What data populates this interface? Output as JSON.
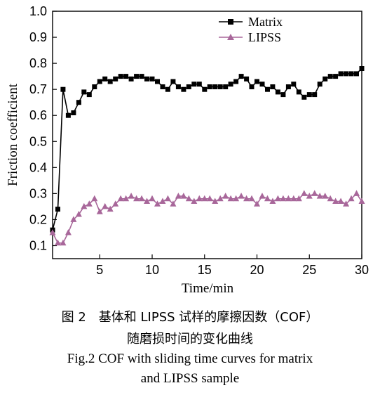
{
  "chart_data": {
    "type": "line",
    "title": "",
    "xlabel": "Time/min",
    "ylabel": "Friction coefficient",
    "xlim": [
      0.5,
      30
    ],
    "ylim": [
      0.05,
      1.0
    ],
    "x_ticks": [
      5,
      10,
      15,
      20,
      25,
      30
    ],
    "y_ticks": [
      0.1,
      0.2,
      0.3,
      0.4,
      0.5,
      0.6,
      0.7,
      0.8,
      0.9,
      1.0
    ],
    "grid": false,
    "legend_position": "top-center",
    "series": [
      {
        "name": "Matrix",
        "color": "#000000",
        "marker": "square",
        "x": [
          0.5,
          1.0,
          1.5,
          2.0,
          2.5,
          3.0,
          3.5,
          4.0,
          4.5,
          5.0,
          5.5,
          6.0,
          6.5,
          7.0,
          7.5,
          8.0,
          8.5,
          9.0,
          9.5,
          10.0,
          10.5,
          11.0,
          11.5,
          12.0,
          12.5,
          13.0,
          13.5,
          14.0,
          14.5,
          15.0,
          15.5,
          16.0,
          16.5,
          17.0,
          17.5,
          18.0,
          18.5,
          19.0,
          19.5,
          20.0,
          20.5,
          21.0,
          21.5,
          22.0,
          22.5,
          23.0,
          23.5,
          24.0,
          24.5,
          25.0,
          25.5,
          26.0,
          26.5,
          27.0,
          27.5,
          28.0,
          28.5,
          29.0,
          29.5,
          30.0
        ],
        "y": [
          0.16,
          0.24,
          0.7,
          0.6,
          0.61,
          0.65,
          0.69,
          0.68,
          0.71,
          0.73,
          0.74,
          0.73,
          0.74,
          0.75,
          0.75,
          0.74,
          0.75,
          0.75,
          0.74,
          0.74,
          0.73,
          0.71,
          0.7,
          0.73,
          0.71,
          0.7,
          0.71,
          0.72,
          0.72,
          0.7,
          0.71,
          0.71,
          0.71,
          0.71,
          0.72,
          0.73,
          0.75,
          0.74,
          0.71,
          0.73,
          0.72,
          0.7,
          0.71,
          0.69,
          0.68,
          0.71,
          0.72,
          0.69,
          0.67,
          0.68,
          0.68,
          0.72,
          0.74,
          0.75,
          0.75,
          0.76,
          0.76,
          0.76,
          0.76,
          0.78
        ]
      },
      {
        "name": "LIPSS",
        "color": "#a8679a",
        "marker": "triangle",
        "x": [
          0.5,
          1.0,
          1.5,
          2.0,
          2.5,
          3.0,
          3.5,
          4.0,
          4.5,
          5.0,
          5.5,
          6.0,
          6.5,
          7.0,
          7.5,
          8.0,
          8.5,
          9.0,
          9.5,
          10.0,
          10.5,
          11.0,
          11.5,
          12.0,
          12.5,
          13.0,
          13.5,
          14.0,
          14.5,
          15.0,
          15.5,
          16.0,
          16.5,
          17.0,
          17.5,
          18.0,
          18.5,
          19.0,
          19.5,
          20.0,
          20.5,
          21.0,
          21.5,
          22.0,
          22.5,
          23.0,
          23.5,
          24.0,
          24.5,
          25.0,
          25.5,
          26.0,
          26.5,
          27.0,
          27.5,
          28.0,
          28.5,
          29.0,
          29.5,
          30.0
        ],
        "y": [
          0.15,
          0.11,
          0.11,
          0.15,
          0.2,
          0.22,
          0.25,
          0.26,
          0.28,
          0.23,
          0.25,
          0.24,
          0.26,
          0.28,
          0.28,
          0.29,
          0.28,
          0.28,
          0.27,
          0.28,
          0.26,
          0.27,
          0.28,
          0.26,
          0.29,
          0.29,
          0.28,
          0.27,
          0.28,
          0.28,
          0.28,
          0.27,
          0.28,
          0.29,
          0.28,
          0.28,
          0.29,
          0.28,
          0.28,
          0.26,
          0.29,
          0.28,
          0.27,
          0.28,
          0.28,
          0.28,
          0.28,
          0.28,
          0.3,
          0.29,
          0.3,
          0.29,
          0.29,
          0.28,
          0.27,
          0.27,
          0.26,
          0.28,
          0.3,
          0.27
        ]
      }
    ]
  },
  "caption": {
    "chinese_line1": "图 2　基体和 LIPSS 试样的摩擦因数（COF）",
    "chinese_line2": "随磨损时间的变化曲线",
    "english_line1": "Fig.2 COF with sliding time curves for matrix",
    "english_line2": "and LIPSS sample"
  }
}
